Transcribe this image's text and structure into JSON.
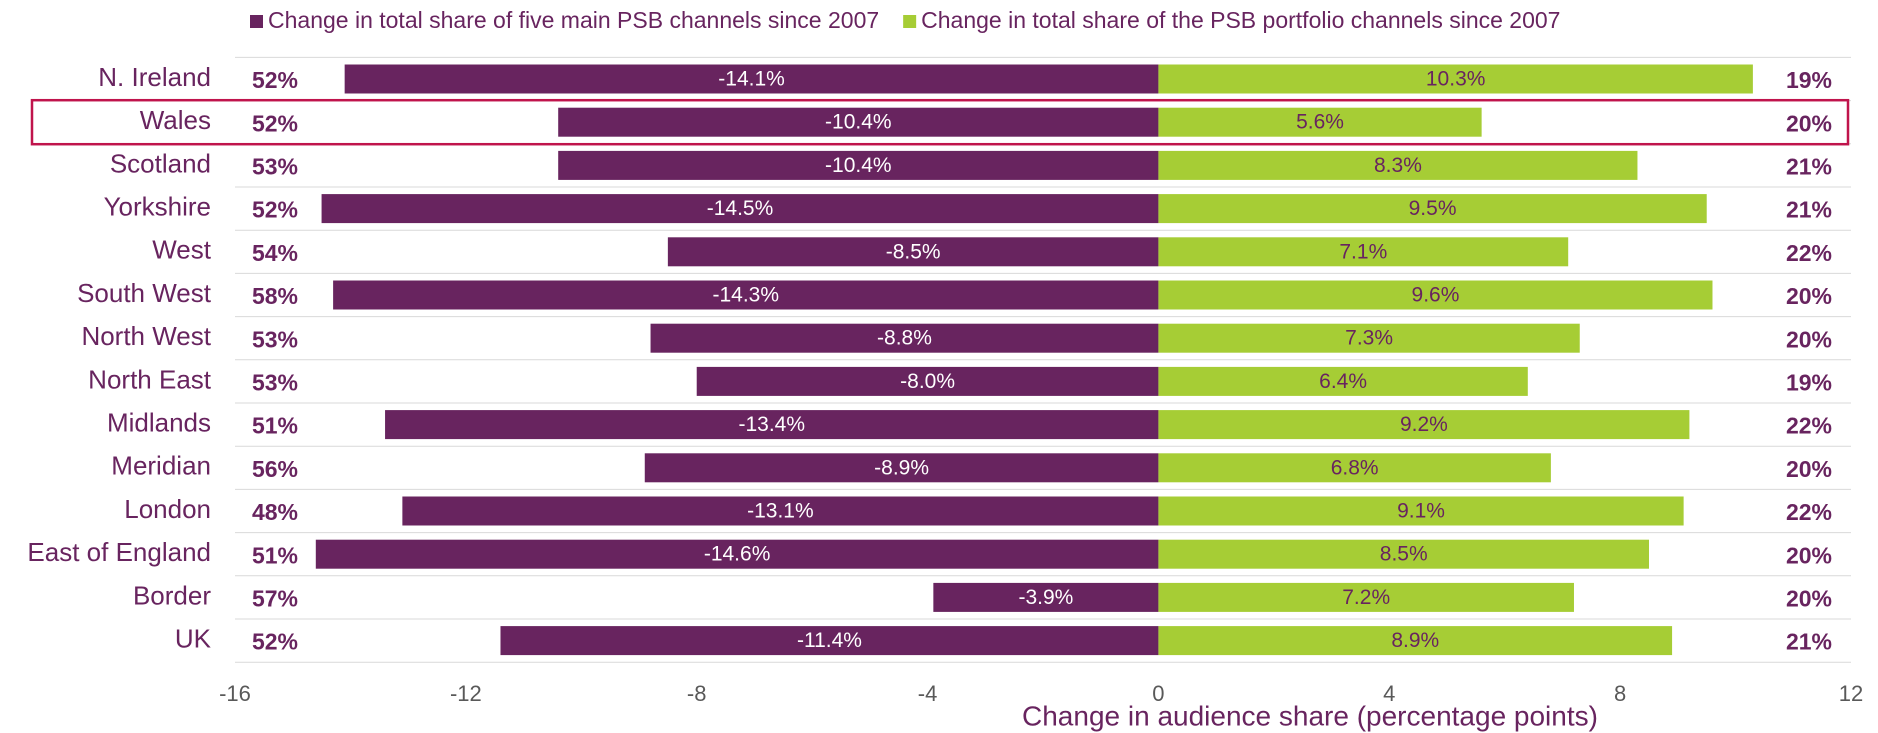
{
  "chart_data": {
    "type": "diverging_bar",
    "categories": [
      "N. Ireland",
      "Wales",
      "Scotland",
      "Yorkshire",
      "West",
      "South West",
      "North West",
      "North East",
      "Midlands",
      "Meridian",
      "London",
      "East of England",
      "Border",
      "UK"
    ],
    "series": [
      {
        "name": "Change in total share of five main PSB channels since 2007",
        "color": "#68245f",
        "values": [
          -14.1,
          -10.4,
          -10.4,
          -14.5,
          -8.5,
          -14.3,
          -8.8,
          -8.0,
          -13.4,
          -8.9,
          -13.1,
          -14.6,
          -3.9,
          -11.4
        ],
        "value_labels": [
          "-14.1%",
          "-10.4%",
          "-10.4%",
          "-14.5%",
          "-8.5%",
          "-14.3%",
          "-8.8%",
          "-8.0%",
          "-13.4%",
          "-8.9%",
          "-13.1%",
          "-14.6%",
          "-3.9%",
          "-11.4%"
        ]
      },
      {
        "name": "Change in total share of the PSB portfolio channels since 2007",
        "color": "#a6cd35",
        "values": [
          10.3,
          5.6,
          8.3,
          9.5,
          7.1,
          9.6,
          7.3,
          6.4,
          9.2,
          6.8,
          9.1,
          8.5,
          7.2,
          8.9
        ],
        "value_labels": [
          "10.3%",
          "5.6%",
          "8.3%",
          "9.5%",
          "7.1%",
          "9.6%",
          "7.3%",
          "6.4%",
          "9.2%",
          "6.8%",
          "9.1%",
          "8.5%",
          "7.2%",
          "8.9%"
        ]
      }
    ],
    "left_labels": [
      "52%",
      "52%",
      "53%",
      "52%",
      "54%",
      "58%",
      "53%",
      "53%",
      "51%",
      "56%",
      "48%",
      "51%",
      "57%",
      "52%"
    ],
    "right_labels": [
      "19%",
      "20%",
      "21%",
      "21%",
      "22%",
      "20%",
      "20%",
      "19%",
      "22%",
      "20%",
      "22%",
      "20%",
      "20%",
      "21%"
    ],
    "xlabel": "Change in audience share (percentage points)",
    "xlim": [
      -16,
      12
    ],
    "xticks": [
      -16,
      -12,
      -8,
      -4,
      0,
      4,
      8,
      12
    ]
  }
}
